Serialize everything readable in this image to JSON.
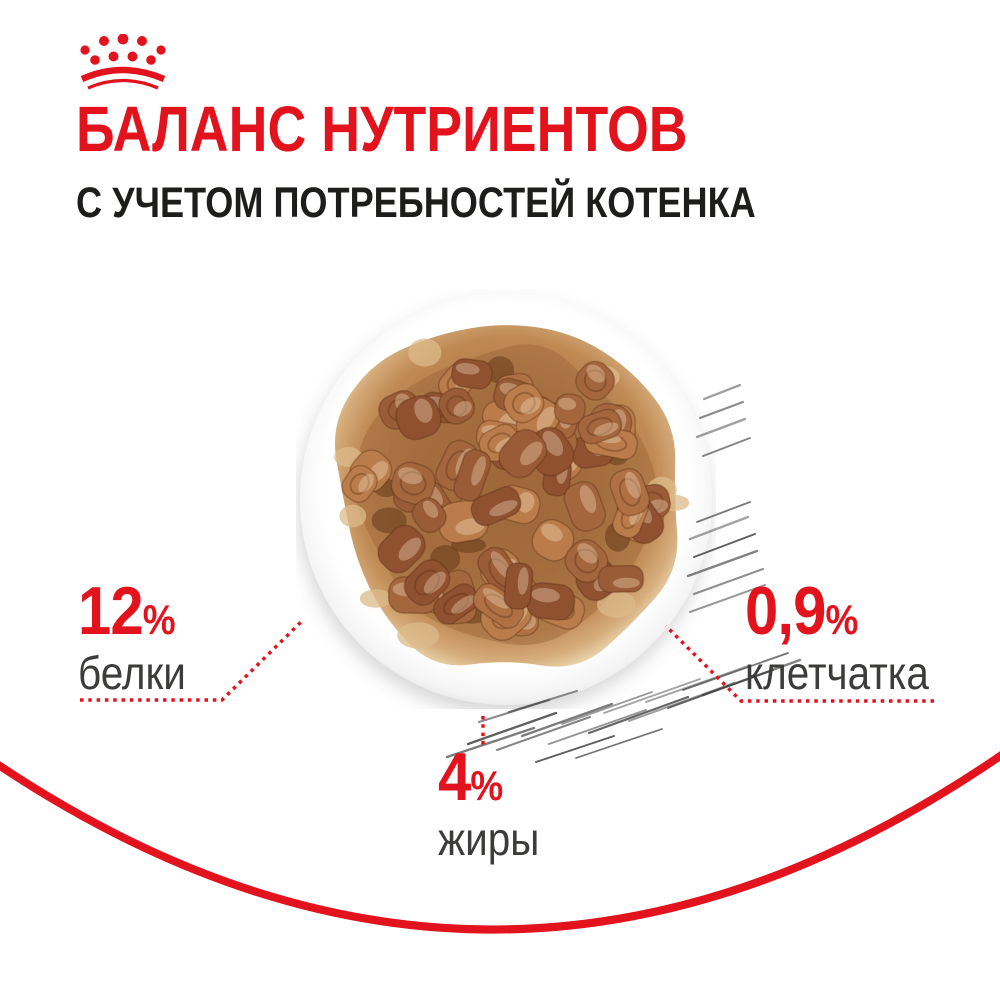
{
  "header": {
    "title": "БАЛАНС НУТРИЕНТОВ",
    "subtitle": "С УЧЕТОМ ПОТРЕБНОСТЕЙ КОТЕНКА"
  },
  "nutrients": [
    {
      "id": "protein",
      "number": "12",
      "unit": "%",
      "label": "белки"
    },
    {
      "id": "fiber",
      "number": "0,9",
      "unit": "%",
      "label": "клетчатка"
    },
    {
      "id": "fat",
      "number": "4",
      "unit": "%",
      "label": "жиры"
    }
  ],
  "icons": [
    {
      "name": "royal-canin-crown-logo",
      "color": "#e2131c"
    }
  ],
  "colors": {
    "accent_red": "#e2131c",
    "title_red": "#e2131c",
    "subtitle_dark": "#1d1d1b",
    "label_gray": "#3c3c3b",
    "gravy_brown": "#b5804a",
    "chunk_brown": "#a4663d",
    "whisker_gray": "#3d3d3d"
  }
}
